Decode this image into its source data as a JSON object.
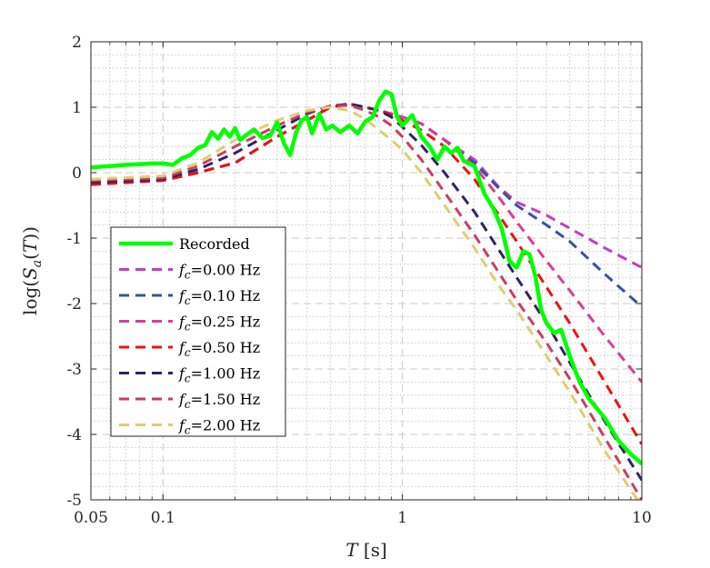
{
  "chart_data": {
    "type": "line",
    "xscale": "log",
    "xlabel": "T [s]",
    "ylabel": "log(S_a(T))",
    "xlim": [
      0.05,
      10
    ],
    "ylim": [
      -5,
      2
    ],
    "xticks": [
      0.05,
      0.1,
      1,
      10
    ],
    "xtick_labels": [
      "0.05",
      "0.1",
      "1",
      "10"
    ],
    "yticks": [
      2,
      1,
      0,
      -1,
      -2,
      -3,
      -4,
      -5
    ],
    "ytick_labels": [
      "2",
      "1",
      "0",
      "-1",
      "-2",
      "-3",
      "-4",
      "-5"
    ],
    "grid": true,
    "legend_position": "lower-left",
    "legend_title_prefix": "f",
    "legend_title_sub": "c",
    "series": [
      {
        "name": "Recorded",
        "label": "Recorded",
        "style": "solid",
        "color": "#00ff00",
        "x": [
          0.05,
          0.06,
          0.07,
          0.08,
          0.09,
          0.1,
          0.11,
          0.12,
          0.13,
          0.14,
          0.15,
          0.16,
          0.17,
          0.18,
          0.19,
          0.2,
          0.21,
          0.22,
          0.24,
          0.26,
          0.28,
          0.3,
          0.32,
          0.34,
          0.36,
          0.38,
          0.4,
          0.42,
          0.45,
          0.48,
          0.51,
          0.55,
          0.6,
          0.65,
          0.7,
          0.75,
          0.8,
          0.85,
          0.9,
          0.95,
          1.0,
          1.1,
          1.2,
          1.3,
          1.4,
          1.5,
          1.6,
          1.7,
          1.8,
          2.0,
          2.2,
          2.4,
          2.6,
          2.8,
          3.0,
          3.2,
          3.4,
          3.6,
          3.8,
          4.0,
          4.3,
          4.6,
          5.0,
          5.5,
          6.0,
          7.0,
          8.0,
          9.0,
          10.0
        ],
        "values": [
          0.08,
          0.1,
          0.12,
          0.13,
          0.14,
          0.14,
          0.12,
          0.22,
          0.27,
          0.38,
          0.42,
          0.62,
          0.52,
          0.66,
          0.55,
          0.68,
          0.5,
          0.56,
          0.66,
          0.53,
          0.56,
          0.77,
          0.45,
          0.27,
          0.62,
          0.8,
          0.85,
          0.6,
          0.9,
          0.66,
          0.72,
          0.62,
          0.72,
          0.6,
          0.78,
          0.85,
          1.1,
          1.24,
          1.2,
          0.85,
          0.72,
          0.88,
          0.55,
          0.4,
          0.2,
          0.4,
          0.3,
          0.38,
          0.18,
          0.1,
          -0.32,
          -0.55,
          -0.85,
          -1.35,
          -1.45,
          -1.2,
          -1.25,
          -1.6,
          -2.1,
          -2.3,
          -2.45,
          -2.4,
          -2.8,
          -3.2,
          -3.45,
          -3.75,
          -4.1,
          -4.3,
          -4.45
        ]
      },
      {
        "name": "fc=0.00 Hz",
        "label": "=0.00 Hz",
        "style": "dashed",
        "color": "#c43dc4",
        "x": [
          0.05,
          0.1,
          0.14,
          0.2,
          0.3,
          0.4,
          0.5,
          0.6,
          0.7,
          0.8,
          0.9,
          1.0,
          1.2,
          1.5,
          2.0,
          2.5,
          3.0,
          4.0,
          5.0,
          7.0,
          10.0
        ],
        "values": [
          -0.18,
          -0.12,
          0.0,
          0.15,
          0.55,
          0.8,
          1.0,
          1.05,
          1.0,
          0.95,
          0.9,
          0.85,
          0.75,
          0.5,
          0.2,
          -0.2,
          -0.45,
          -0.65,
          -0.85,
          -1.15,
          -1.45
        ]
      },
      {
        "name": "fc=0.10 Hz",
        "label": "=0.10 Hz",
        "style": "dashed",
        "color": "#3553a0",
        "x": [
          0.05,
          0.1,
          0.14,
          0.2,
          0.3,
          0.4,
          0.5,
          0.6,
          0.7,
          0.8,
          0.9,
          1.0,
          1.2,
          1.5,
          2.0,
          2.5,
          3.0,
          4.0,
          5.0,
          7.0,
          10.0
        ],
        "values": [
          -0.18,
          -0.12,
          0.0,
          0.15,
          0.55,
          0.8,
          1.0,
          1.05,
          1.0,
          0.95,
          0.9,
          0.85,
          0.75,
          0.5,
          0.15,
          -0.22,
          -0.5,
          -0.8,
          -1.05,
          -1.55,
          -2.05
        ]
      },
      {
        "name": "fc=0.25 Hz",
        "label": "=0.25 Hz",
        "style": "dashed",
        "color": "#d93d97",
        "x": [
          0.05,
          0.1,
          0.14,
          0.2,
          0.3,
          0.4,
          0.5,
          0.6,
          0.7,
          0.8,
          0.9,
          1.0,
          1.2,
          1.5,
          2.0,
          2.5,
          3.0,
          4.0,
          5.0,
          7.0,
          10.0
        ],
        "values": [
          -0.18,
          -0.12,
          0.0,
          0.15,
          0.55,
          0.8,
          1.0,
          1.05,
          1.0,
          0.95,
          0.9,
          0.85,
          0.75,
          0.5,
          0.1,
          -0.35,
          -0.75,
          -1.35,
          -1.8,
          -2.5,
          -3.2
        ]
      },
      {
        "name": "fc=0.50 Hz",
        "label": "=0.50 Hz",
        "style": "dashed",
        "color": "#ee1111",
        "x": [
          0.05,
          0.1,
          0.14,
          0.2,
          0.3,
          0.4,
          0.5,
          0.6,
          0.7,
          0.8,
          0.9,
          1.0,
          1.2,
          1.5,
          2.0,
          2.5,
          3.0,
          4.0,
          5.0,
          7.0,
          10.0
        ],
        "values": [
          -0.18,
          -0.12,
          0.0,
          0.15,
          0.55,
          0.8,
          1.0,
          1.05,
          1.0,
          0.95,
          0.88,
          0.8,
          0.65,
          0.4,
          -0.1,
          -0.62,
          -1.05,
          -1.75,
          -2.3,
          -3.2,
          -4.15
        ]
      },
      {
        "name": "fc=1.00 Hz",
        "label": "=1.00 Hz",
        "style": "dashed",
        "color": "#2e2466",
        "x": [
          0.05,
          0.1,
          0.14,
          0.2,
          0.3,
          0.4,
          0.5,
          0.6,
          0.7,
          0.8,
          0.9,
          1.0,
          1.2,
          1.5,
          2.0,
          2.5,
          3.0,
          4.0,
          5.0,
          7.0,
          10.0
        ],
        "values": [
          -0.15,
          -0.1,
          0.05,
          0.3,
          0.65,
          0.9,
          1.02,
          1.05,
          1.0,
          0.95,
          0.85,
          0.7,
          0.42,
          0.0,
          -0.6,
          -1.15,
          -1.6,
          -2.3,
          -2.9,
          -3.8,
          -4.7
        ]
      },
      {
        "name": "fc=1.50 Hz",
        "label": "=1.50 Hz",
        "style": "dashed",
        "color": "#c93e62",
        "x": [
          0.05,
          0.1,
          0.14,
          0.2,
          0.3,
          0.4,
          0.5,
          0.6,
          0.7,
          0.8,
          0.9,
          1.0,
          1.2,
          1.5,
          2.0,
          2.5,
          3.0,
          4.0,
          5.0,
          7.0,
          10.0
        ],
        "values": [
          -0.12,
          -0.08,
          0.1,
          0.4,
          0.72,
          0.92,
          1.02,
          1.03,
          0.95,
          0.85,
          0.72,
          0.55,
          0.2,
          -0.3,
          -0.95,
          -1.5,
          -1.95,
          -2.6,
          -3.15,
          -4.05,
          -5.0
        ]
      },
      {
        "name": "fc=2.00 Hz",
        "label": "=2.00 Hz",
        "style": "dashed",
        "color": "#e0cd72",
        "x": [
          0.05,
          0.1,
          0.14,
          0.2,
          0.3,
          0.4,
          0.5,
          0.6,
          0.7,
          0.8,
          0.9,
          1.0,
          1.2,
          1.5,
          2.0,
          2.5,
          3.0,
          4.0,
          5.0,
          7.0,
          10.0
        ],
        "values": [
          -0.1,
          -0.05,
          0.15,
          0.5,
          0.8,
          0.95,
          1.0,
          0.95,
          0.82,
          0.65,
          0.5,
          0.35,
          0.0,
          -0.5,
          -1.15,
          -1.7,
          -2.1,
          -2.8,
          -3.35,
          -4.25,
          -5.1
        ]
      }
    ]
  }
}
